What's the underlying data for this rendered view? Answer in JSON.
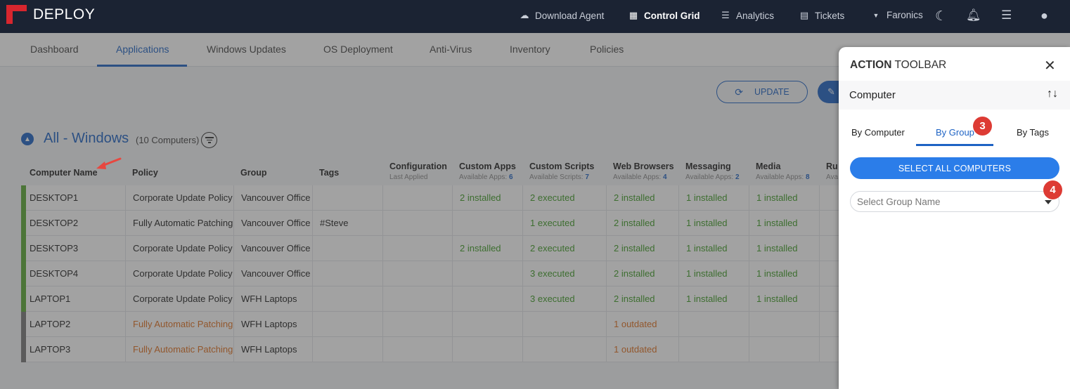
{
  "header": {
    "brand": "DEPLOY",
    "nav": [
      {
        "label": "Download Agent",
        "icon": "cloud-download-icon"
      },
      {
        "label": "Control Grid",
        "icon": "grid-icon"
      },
      {
        "label": "Analytics",
        "icon": "list-icon"
      },
      {
        "label": "Tickets",
        "icon": "ticket-icon"
      },
      {
        "label": "Faronics",
        "icon": "chevron-down-icon"
      }
    ],
    "icons": [
      "moon-icon",
      "bell-icon",
      "task-list-icon",
      "user-icon"
    ]
  },
  "tabs": [
    "Dashboard",
    "Applications",
    "Windows Updates",
    "OS Deployment",
    "Anti-Virus",
    "Inventory",
    "Policies"
  ],
  "toolbar": {
    "update_label": "UPDATE"
  },
  "section": {
    "title": "All - Windows",
    "count": "(10 Computers)"
  },
  "table": {
    "columns": [
      {
        "title": "Computer Name",
        "sub": "",
        "sub_value": ""
      },
      {
        "title": "Policy",
        "sub": "",
        "sub_value": ""
      },
      {
        "title": "Group",
        "sub": "",
        "sub_value": ""
      },
      {
        "title": "Tags",
        "sub": "",
        "sub_value": ""
      },
      {
        "title": "Configuration",
        "sub": "Last Applied",
        "sub_value": ""
      },
      {
        "title": "Custom Apps",
        "sub": "Available Apps:",
        "sub_value": "6"
      },
      {
        "title": "Custom Scripts",
        "sub": "Available Scripts:",
        "sub_value": "7"
      },
      {
        "title": "Web Browsers",
        "sub": "Available Apps:",
        "sub_value": "4"
      },
      {
        "title": "Messaging",
        "sub": "Available Apps:",
        "sub_value": "2"
      },
      {
        "title": "Media",
        "sub": "Available Apps:",
        "sub_value": "8"
      },
      {
        "title": "Ru",
        "sub": "Ava",
        "sub_value": ""
      }
    ],
    "rows": [
      {
        "name": "DESKTOP1",
        "policy": "Corporate Update Policy",
        "group": "Vancouver Office",
        "tags": "",
        "config": "",
        "custom_apps": "2 installed",
        "custom_scripts": "2 executed",
        "web": "2 installed",
        "messaging": "1 installed",
        "media": "1 installed",
        "status": "green"
      },
      {
        "name": "DESKTOP2",
        "policy": "Fully Automatic Patching",
        "group": "Vancouver Office",
        "tags": "#Steve",
        "config": "",
        "custom_apps": "",
        "custom_scripts": "1 executed",
        "web": "2 installed",
        "messaging": "1 installed",
        "media": "1 installed",
        "status": "green"
      },
      {
        "name": "DESKTOP3",
        "policy": "Corporate Update Policy",
        "group": "Vancouver Office",
        "tags": "",
        "config": "",
        "custom_apps": "2 installed",
        "custom_scripts": "2 executed",
        "web": "2 installed",
        "messaging": "1 installed",
        "media": "1 installed",
        "status": "green"
      },
      {
        "name": "DESKTOP4",
        "policy": "Corporate Update Policy",
        "group": "Vancouver Office",
        "tags": "",
        "config": "",
        "custom_apps": "",
        "custom_scripts": "3 executed",
        "web": "2 installed",
        "messaging": "1 installed",
        "media": "1 installed",
        "status": "green"
      },
      {
        "name": "LAPTOP1",
        "policy": "Corporate Update Policy",
        "group": "WFH Laptops",
        "tags": "",
        "config": "",
        "custom_apps": "",
        "custom_scripts": "3 executed",
        "web": "2 installed",
        "messaging": "1 installed",
        "media": "1 installed",
        "status": "green"
      },
      {
        "name": "LAPTOP2",
        "policy": "Fully Automatic Patching",
        "group": "WFH Laptops",
        "tags": "",
        "config": "",
        "custom_apps": "",
        "custom_scripts": "",
        "web": "1 outdated",
        "messaging": "",
        "media": "",
        "status": "gray"
      },
      {
        "name": "LAPTOP3",
        "policy": "Fully Automatic Patching",
        "group": "WFH Laptops",
        "tags": "",
        "config": "",
        "custom_apps": "",
        "custom_scripts": "",
        "web": "1 outdated",
        "messaging": "",
        "media": "",
        "status": "gray"
      }
    ]
  },
  "panel": {
    "title_bold": "ACTION",
    "title_rest": " TOOLBAR",
    "selector_label": "Computer",
    "tabs": [
      "By Computer",
      "By Group",
      "By Tags"
    ],
    "select_all_label": "SELECT ALL COMPUTERS",
    "group_placeholder": "Select Group Name"
  },
  "badges": [
    "3",
    "4"
  ],
  "colors": {
    "accent": "#1e63c4",
    "installed": "#3e9b25",
    "outdated": "#e0701f",
    "badge": "#dd3b34",
    "topbar": "#1b2333"
  }
}
